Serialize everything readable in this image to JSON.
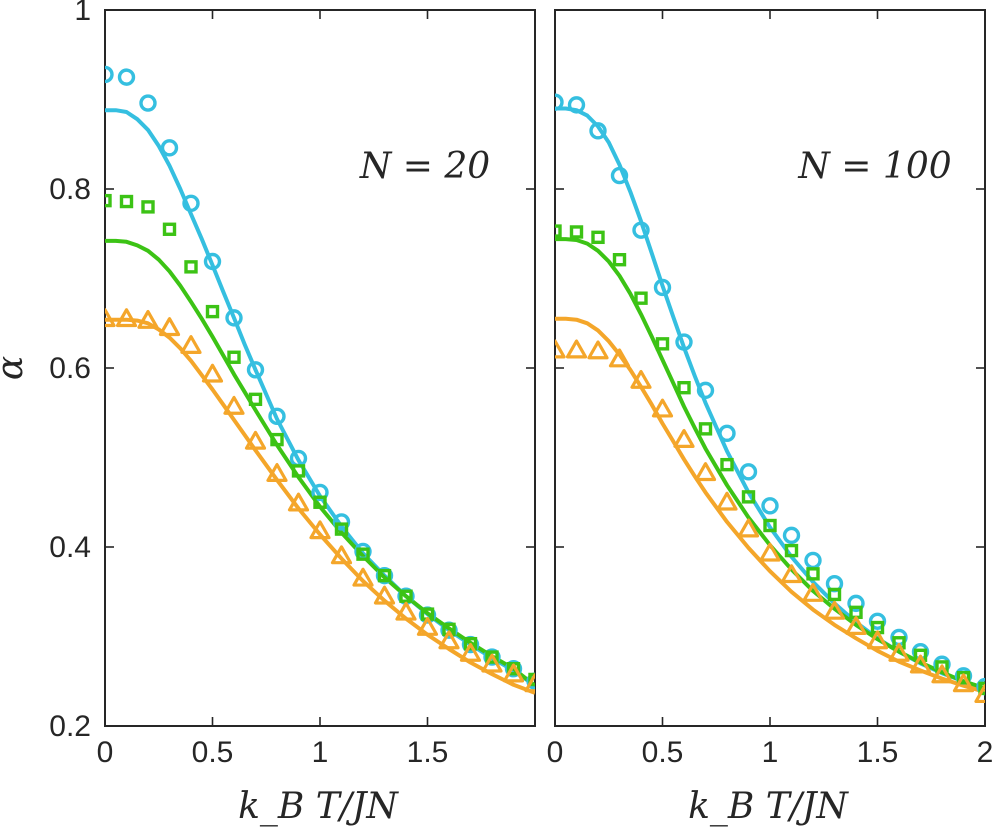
{
  "chart_data": [
    {
      "type": "line",
      "panel": "left",
      "annotation": "N = 20",
      "xlabel": "k_B T/JN",
      "ylabel": "α",
      "xlim": [
        0,
        2
      ],
      "ylim": [
        0.2,
        1
      ],
      "xticks": [
        0,
        0.5,
        1,
        1.5
      ],
      "xtick_labels": [
        "0",
        "0.5",
        "1",
        "1.5"
      ],
      "yticks": [
        0.2,
        0.4,
        0.6,
        0.8,
        1
      ],
      "ytick_labels": [
        "0.2",
        "0.4",
        "0.6",
        "0.8",
        "1"
      ],
      "curves": [
        {
          "name": "cyan-curve",
          "color": "#35BFE0",
          "x": [
            0,
            0.05,
            0.1,
            0.15,
            0.2,
            0.25,
            0.3,
            0.35,
            0.4,
            0.45,
            0.5,
            0.55,
            0.6,
            0.65,
            0.7,
            0.8,
            0.9,
            1.0,
            1.1,
            1.2,
            1.3,
            1.4,
            1.5,
            1.6,
            1.7,
            1.8,
            1.9,
            2.0
          ],
          "y": [
            0.888,
            0.888,
            0.886,
            0.878,
            0.866,
            0.848,
            0.826,
            0.8,
            0.772,
            0.744,
            0.715,
            0.685,
            0.656,
            0.626,
            0.598,
            0.543,
            0.497,
            0.457,
            0.423,
            0.393,
            0.368,
            0.345,
            0.325,
            0.307,
            0.291,
            0.276,
            0.262,
            0.245
          ]
        },
        {
          "name": "green-curve",
          "color": "#3CC315",
          "x": [
            0,
            0.05,
            0.1,
            0.15,
            0.2,
            0.25,
            0.3,
            0.35,
            0.4,
            0.45,
            0.5,
            0.55,
            0.6,
            0.65,
            0.7,
            0.8,
            0.9,
            1.0,
            1.1,
            1.2,
            1.3,
            1.4,
            1.5,
            1.6,
            1.7,
            1.8,
            1.9,
            2.0
          ],
          "y": [
            0.742,
            0.742,
            0.741,
            0.737,
            0.731,
            0.721,
            0.708,
            0.692,
            0.674,
            0.655,
            0.635,
            0.614,
            0.593,
            0.573,
            0.553,
            0.514,
            0.478,
            0.445,
            0.416,
            0.39,
            0.366,
            0.345,
            0.326,
            0.309,
            0.293,
            0.278,
            0.264,
            0.245
          ]
        },
        {
          "name": "orange-curve",
          "color": "#F4A62A",
          "x": [
            0,
            0.05,
            0.1,
            0.15,
            0.2,
            0.25,
            0.3,
            0.35,
            0.4,
            0.45,
            0.5,
            0.55,
            0.6,
            0.65,
            0.7,
            0.8,
            0.9,
            1.0,
            1.1,
            1.2,
            1.3,
            1.4,
            1.5,
            1.6,
            1.7,
            1.8,
            1.9,
            2.0
          ],
          "y": [
            0.654,
            0.654,
            0.654,
            0.653,
            0.65,
            0.643,
            0.634,
            0.622,
            0.608,
            0.592,
            0.576,
            0.559,
            0.542,
            0.525,
            0.508,
            0.475,
            0.443,
            0.414,
            0.387,
            0.362,
            0.34,
            0.32,
            0.302,
            0.286,
            0.271,
            0.258,
            0.246,
            0.237
          ]
        }
      ],
      "markers": [
        {
          "name": "circles",
          "shape": "circle",
          "color": "#35BFE0",
          "x": [
            0,
            0.1,
            0.2,
            0.3,
            0.4,
            0.5,
            0.6,
            0.7,
            0.8,
            0.9,
            1.0,
            1.1,
            1.2,
            1.3,
            1.4,
            1.5,
            1.6,
            1.7,
            1.8,
            1.9,
            2.0
          ],
          "y": [
            0.928,
            0.925,
            0.896,
            0.846,
            0.784,
            0.719,
            0.656,
            0.598,
            0.546,
            0.499,
            0.461,
            0.428,
            0.395,
            0.368,
            0.345,
            0.324,
            0.307,
            0.291,
            0.277,
            0.264,
            0.25
          ]
        },
        {
          "name": "squares",
          "shape": "square",
          "color": "#3CC315",
          "x": [
            0,
            0.1,
            0.2,
            0.3,
            0.4,
            0.5,
            0.6,
            0.7,
            0.8,
            0.9,
            1.0,
            1.1,
            1.2,
            1.3,
            1.4,
            1.5,
            1.6,
            1.7,
            1.8,
            1.9,
            2.0
          ],
          "y": [
            0.787,
            0.786,
            0.78,
            0.755,
            0.713,
            0.663,
            0.612,
            0.565,
            0.52,
            0.485,
            0.45,
            0.42,
            0.392,
            0.368,
            0.345,
            0.325,
            0.308,
            0.292,
            0.277,
            0.264,
            0.252
          ]
        },
        {
          "name": "triangles",
          "shape": "triangle",
          "color": "#F4A62A",
          "x": [
            0,
            0.1,
            0.2,
            0.3,
            0.4,
            0.5,
            0.6,
            0.7,
            0.8,
            0.9,
            1.0,
            1.1,
            1.2,
            1.3,
            1.4,
            1.5,
            1.6,
            1.7,
            1.8,
            1.9,
            2.0
          ],
          "y": [
            0.655,
            0.655,
            0.653,
            0.645,
            0.625,
            0.593,
            0.557,
            0.518,
            0.482,
            0.449,
            0.418,
            0.39,
            0.365,
            0.345,
            0.327,
            0.31,
            0.295,
            0.281,
            0.269,
            0.258,
            0.247
          ]
        }
      ]
    },
    {
      "type": "line",
      "panel": "right",
      "annotation": "N = 100",
      "xlabel": "k_B T/JN",
      "ylabel": "",
      "xlim": [
        0,
        2
      ],
      "ylim": [
        0.2,
        1
      ],
      "xticks": [
        0,
        0.5,
        1,
        1.5,
        2
      ],
      "xtick_labels": [
        "0",
        "0.5",
        "1",
        "1.5",
        "2"
      ],
      "yticks": [
        0.2,
        0.4,
        0.6,
        0.8,
        1
      ],
      "ytick_labels": [],
      "curves": [
        {
          "name": "cyan-curve",
          "color": "#35BFE0",
          "x": [
            0,
            0.05,
            0.1,
            0.15,
            0.2,
            0.25,
            0.3,
            0.35,
            0.4,
            0.45,
            0.5,
            0.55,
            0.6,
            0.65,
            0.7,
            0.8,
            0.9,
            1.0,
            1.1,
            1.2,
            1.3,
            1.4,
            1.5,
            1.6,
            1.7,
            1.8,
            1.9,
            2.0
          ],
          "y": [
            0.89,
            0.89,
            0.888,
            0.882,
            0.87,
            0.852,
            0.827,
            0.797,
            0.764,
            0.728,
            0.692,
            0.657,
            0.623,
            0.591,
            0.561,
            0.507,
            0.461,
            0.422,
            0.389,
            0.361,
            0.337,
            0.316,
            0.298,
            0.283,
            0.27,
            0.259,
            0.25,
            0.242
          ]
        },
        {
          "name": "green-curve",
          "color": "#3CC315",
          "x": [
            0,
            0.05,
            0.1,
            0.15,
            0.2,
            0.25,
            0.3,
            0.35,
            0.4,
            0.45,
            0.5,
            0.55,
            0.6,
            0.65,
            0.7,
            0.8,
            0.9,
            1.0,
            1.1,
            1.2,
            1.3,
            1.4,
            1.5,
            1.6,
            1.7,
            1.8,
            1.9,
            2.0
          ],
          "y": [
            0.744,
            0.744,
            0.743,
            0.739,
            0.731,
            0.719,
            0.703,
            0.683,
            0.66,
            0.635,
            0.609,
            0.583,
            0.557,
            0.533,
            0.51,
            0.469,
            0.433,
            0.402,
            0.375,
            0.351,
            0.331,
            0.313,
            0.297,
            0.283,
            0.271,
            0.26,
            0.25,
            0.242
          ]
        },
        {
          "name": "orange-curve",
          "color": "#F4A62A",
          "x": [
            0,
            0.05,
            0.1,
            0.15,
            0.2,
            0.25,
            0.3,
            0.35,
            0.4,
            0.45,
            0.5,
            0.55,
            0.6,
            0.65,
            0.7,
            0.8,
            0.9,
            1.0,
            1.1,
            1.2,
            1.3,
            1.4,
            1.5,
            1.6,
            1.7,
            1.8,
            1.9,
            2.0
          ],
          "y": [
            0.655,
            0.655,
            0.654,
            0.65,
            0.642,
            0.63,
            0.615,
            0.598,
            0.579,
            0.559,
            0.538,
            0.518,
            0.498,
            0.479,
            0.461,
            0.428,
            0.399,
            0.373,
            0.35,
            0.33,
            0.313,
            0.298,
            0.284,
            0.272,
            0.262,
            0.253,
            0.245,
            0.238
          ]
        }
      ],
      "markers": [
        {
          "name": "circles",
          "shape": "circle",
          "color": "#35BFE0",
          "x": [
            0,
            0.1,
            0.2,
            0.3,
            0.4,
            0.5,
            0.6,
            0.7,
            0.8,
            0.9,
            1.0,
            1.1,
            1.2,
            1.3,
            1.4,
            1.5,
            1.6,
            1.7,
            1.8,
            1.9,
            2.0
          ],
          "y": [
            0.897,
            0.894,
            0.865,
            0.815,
            0.754,
            0.69,
            0.629,
            0.575,
            0.527,
            0.484,
            0.446,
            0.413,
            0.385,
            0.359,
            0.337,
            0.317,
            0.299,
            0.283,
            0.269,
            0.256,
            0.244
          ]
        },
        {
          "name": "squares",
          "shape": "square",
          "color": "#3CC315",
          "x": [
            0,
            0.1,
            0.2,
            0.3,
            0.4,
            0.5,
            0.6,
            0.7,
            0.8,
            0.9,
            1.0,
            1.1,
            1.2,
            1.3,
            1.4,
            1.5,
            1.6,
            1.7,
            1.8,
            1.9,
            2.0
          ],
          "y": [
            0.753,
            0.752,
            0.746,
            0.721,
            0.678,
            0.627,
            0.578,
            0.532,
            0.492,
            0.456,
            0.424,
            0.396,
            0.37,
            0.347,
            0.327,
            0.31,
            0.293,
            0.279,
            0.266,
            0.254,
            0.242
          ]
        },
        {
          "name": "triangles",
          "shape": "triangle",
          "color": "#F4A62A",
          "x": [
            0,
            0.1,
            0.2,
            0.3,
            0.4,
            0.5,
            0.6,
            0.7,
            0.8,
            0.9,
            1.0,
            1.1,
            1.2,
            1.3,
            1.4,
            1.5,
            1.6,
            1.7,
            1.8,
            1.9,
            2.0
          ],
          "y": [
            0.62,
            0.62,
            0.619,
            0.61,
            0.586,
            0.554,
            0.52,
            0.483,
            0.45,
            0.42,
            0.393,
            0.369,
            0.348,
            0.328,
            0.311,
            0.295,
            0.281,
            0.268,
            0.257,
            0.247,
            0.235
          ]
        }
      ]
    }
  ]
}
